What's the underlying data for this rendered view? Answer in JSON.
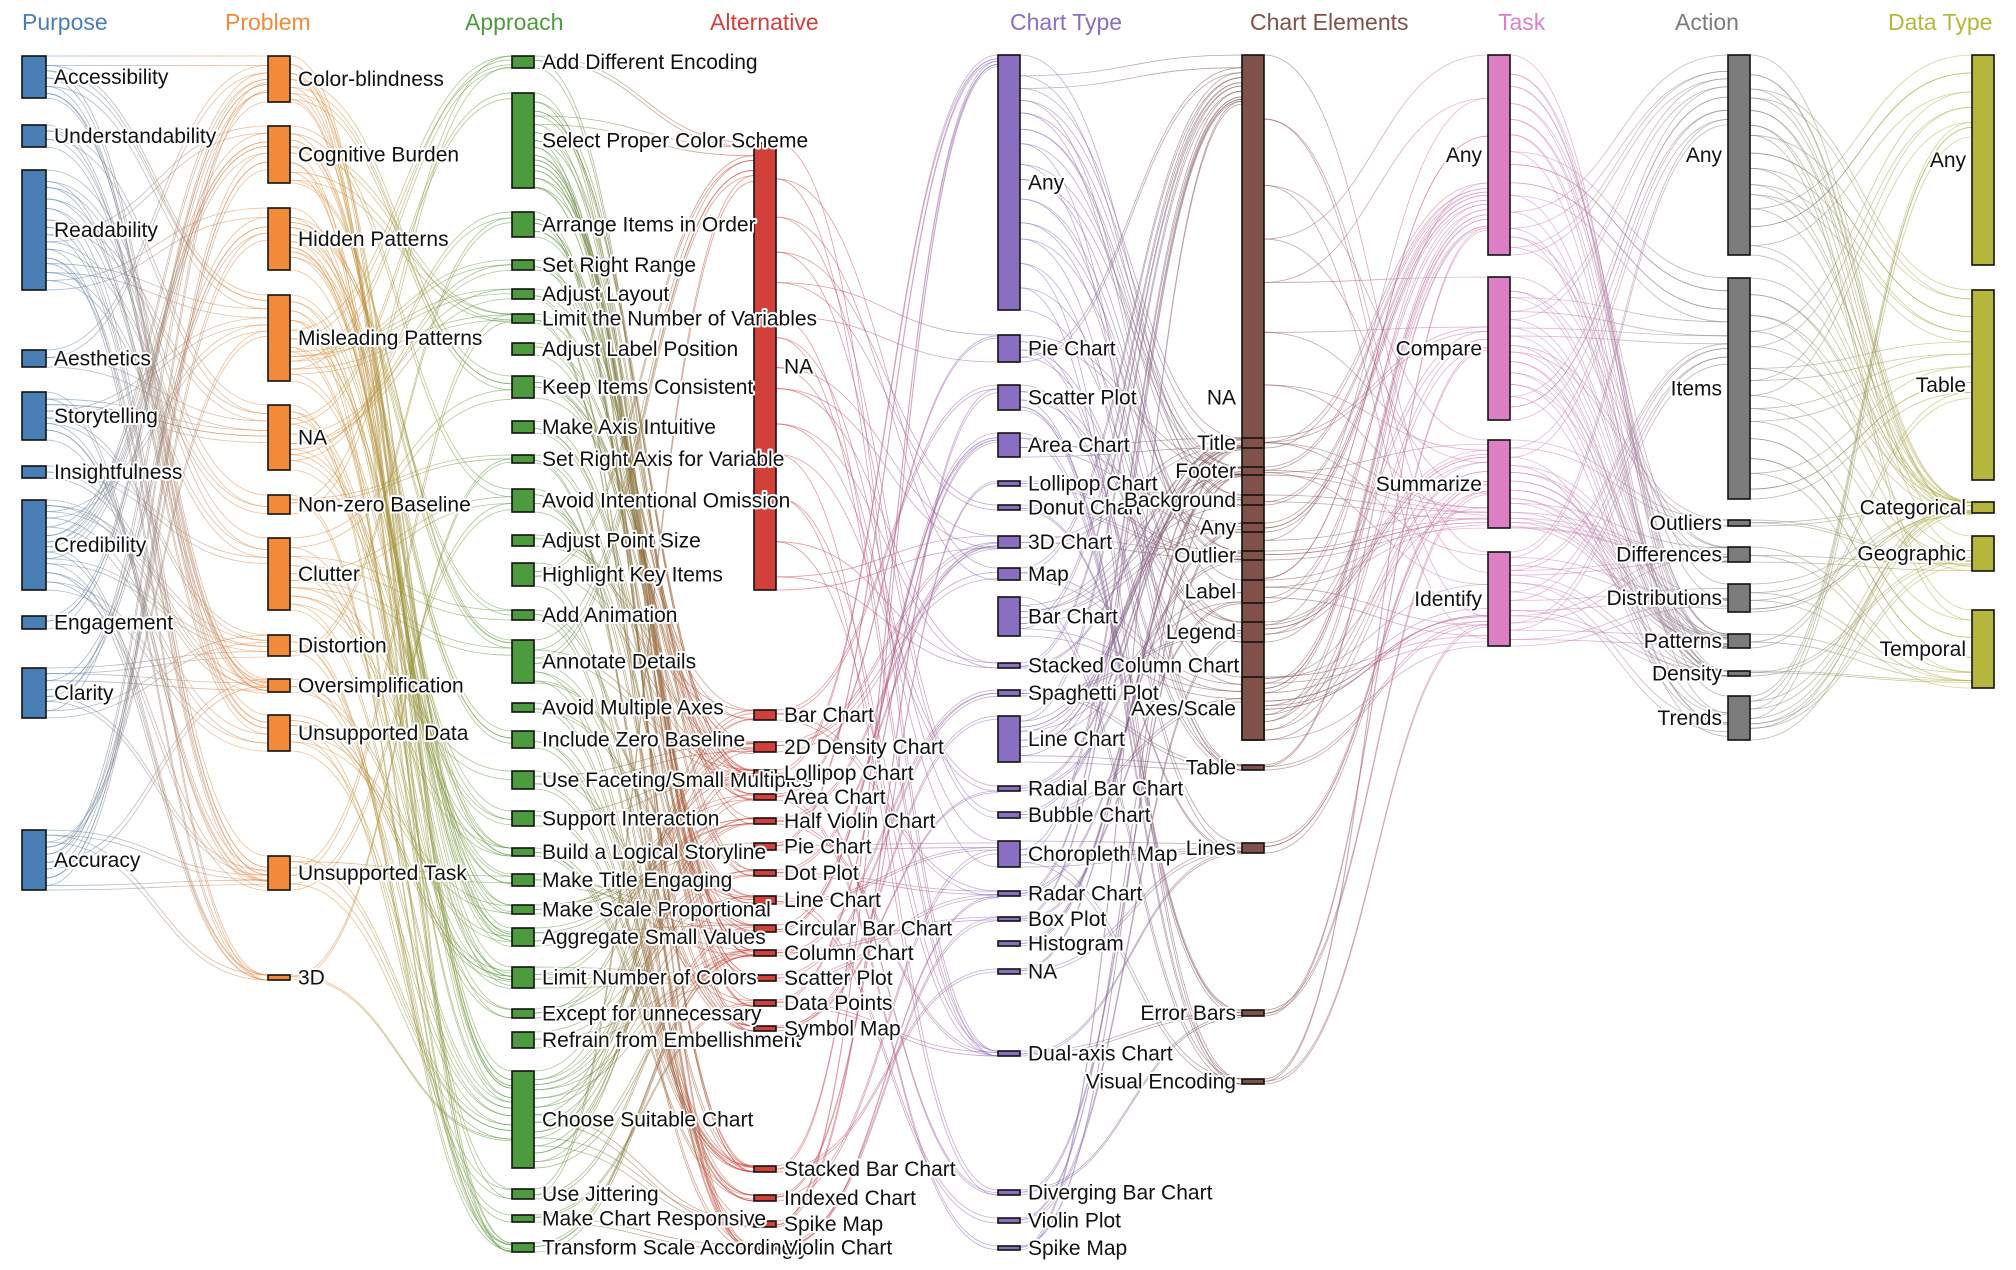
{
  "columns": [
    {
      "title": "Purpose",
      "color": "#4a7fb5",
      "nodes": [
        "Accessibility",
        "Understandability",
        "Readability",
        "Aesthetics",
        "Storytelling",
        "Insightfulness",
        "Credibility",
        "Engagement",
        "Clarity",
        "Accuracy"
      ]
    },
    {
      "title": "Problem",
      "color": "#f28a3a",
      "nodes": [
        "Color-blindness",
        "Cognitive Burden",
        "Hidden Patterns",
        "Misleading Patterns",
        "NA",
        "Non-zero Baseline",
        "Clutter",
        "Distortion",
        "Oversimplification",
        "Unsupported Data",
        "Unsupported Task",
        "3D"
      ]
    },
    {
      "title": "Approach",
      "color": "#4e9a3e",
      "nodes": [
        "Add Different Encoding",
        "Select Proper Color Scheme",
        "Arrange Items in Order",
        "Set Right Range",
        "Adjust Layout",
        "Limit the Number of Variables",
        "Adjust Label Position",
        "Keep Items Consistent",
        "Make Axis Intuitive",
        "Set Right Axis for Variable",
        "Avoid Intentional Omission",
        "Adjust Point Size",
        "Highlight Key Items",
        "Add Animation",
        "Annotate Details",
        "Avoid Multiple Axes",
        "Include Zero Baseline",
        "Use Faceting/Small Multiples",
        "Support Interaction",
        "Build a Logical Storyline",
        "Make Title Engaging",
        "Make Scale Proportional",
        "Aggregate Small Values",
        "Limit Number of Colors",
        "Except for unnecessary",
        "Refrain from Embellishment",
        "Choose Suitable Chart",
        "Use Jittering",
        "Make Chart Responsive",
        "Transform Scale Accordingly"
      ]
    },
    {
      "title": "Alternative",
      "color": "#d2403a",
      "nodes": [
        "NA",
        "Bar Chart",
        "2D Density Chart",
        "Lollipop Chart",
        "Area Chart",
        "Half Violin Chart",
        "Pie Chart",
        "Dot Plot",
        "Line Chart",
        "Circular Bar Chart",
        "Column Chart",
        "Scatter Plot",
        "Data Points",
        "Symbol Map",
        "Stacked Bar Chart",
        "Indexed Chart",
        "Spike Map",
        "Violin Chart"
      ]
    },
    {
      "title": "Chart Type",
      "color": "#8a6ec2",
      "nodes": [
        "Any",
        "Pie Chart",
        "Scatter Plot",
        "Area Chart",
        "Lollipop Chart",
        "Donut Chart",
        "3D Chart",
        "Map",
        "Bar Chart",
        "Stacked Column Chart",
        "Spaghetti Plot",
        "Line Chart",
        "Radial Bar Chart",
        "Bubble Chart",
        "Choropleth Map",
        "Radar Chart",
        "Box Plot",
        "Histogram",
        "NA",
        "Dual-axis Chart",
        "Diverging Bar Chart",
        "Violin Plot",
        "Spike Map"
      ]
    },
    {
      "title": "Chart Elements",
      "color": "#7f5148",
      "nodes": [
        "NA",
        "Title",
        "Footer",
        "Background",
        "Any",
        "Outlier",
        "Label",
        "Legend",
        "Axes/Scale",
        "Table",
        "Lines",
        "Error Bars",
        "Visual Encoding"
      ]
    },
    {
      "title": "Task",
      "color": "#dc7fc4",
      "nodes": [
        "Any",
        "Compare",
        "Summarize",
        "Identify"
      ]
    },
    {
      "title": "Action",
      "color": "#7c7c7c",
      "nodes": [
        "Any",
        "Items",
        "Outliers",
        "Differences",
        "Distributions",
        "Patterns",
        "Density",
        "Trends"
      ]
    },
    {
      "title": "Data Type",
      "color": "#b5b73c",
      "nodes": [
        "Any",
        "Table",
        "Categorical",
        "Geographic",
        "Temporal"
      ]
    }
  ]
}
